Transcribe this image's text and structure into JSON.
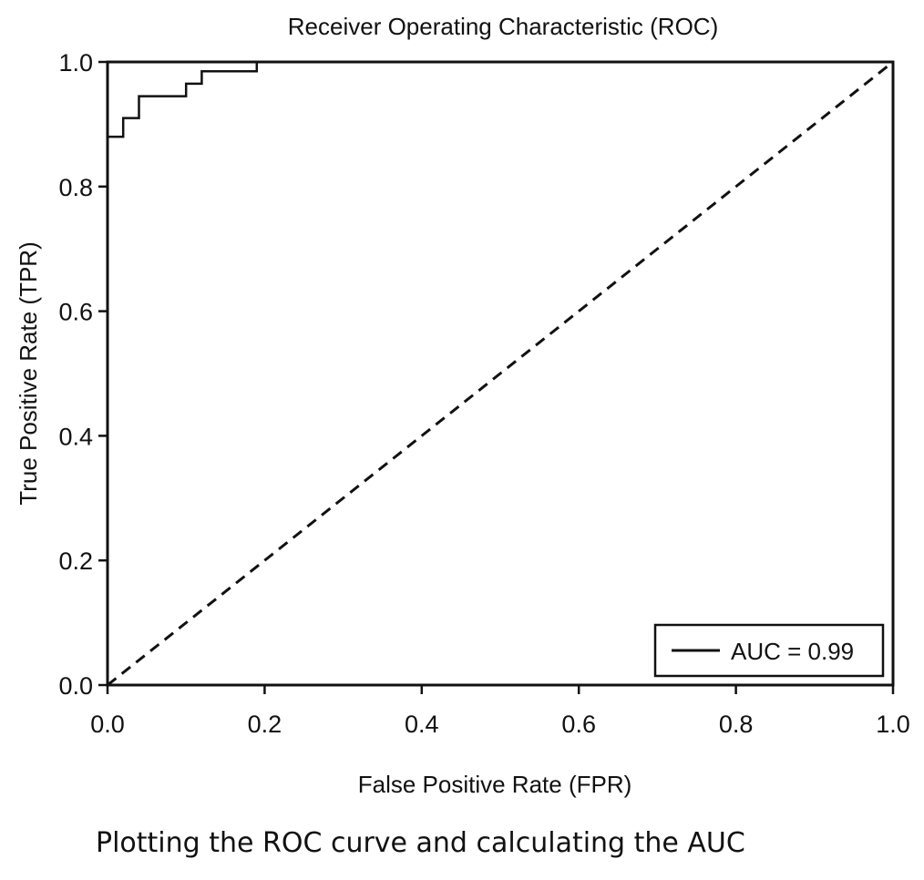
{
  "caption": "Plotting the ROC curve and calculating the AUC",
  "chart_data": {
    "type": "line",
    "title": "Receiver Operating Characteristic (ROC)",
    "xlabel": "False Positive Rate (FPR)",
    "ylabel": "True Positive Rate (TPR)",
    "xlim": [
      0.0,
      1.0
    ],
    "ylim": [
      0.0,
      1.0
    ],
    "xticks": [
      0.0,
      0.2,
      0.4,
      0.6,
      0.8,
      1.0
    ],
    "xtick_labels": [
      "0.0",
      "0.2",
      "0.4",
      "0.6",
      "0.8",
      "1.0"
    ],
    "yticks": [
      0.0,
      0.2,
      0.4,
      0.6,
      0.8,
      1.0
    ],
    "ytick_labels": [
      "0.0",
      "0.2",
      "0.4",
      "0.6",
      "0.8",
      "1.0"
    ],
    "grid": false,
    "legend_position": "bottom-right",
    "series": [
      {
        "name": "AUC = 0.99",
        "style": "solid",
        "color": "#111111",
        "x": [
          0.0,
          0.0,
          0.02,
          0.02,
          0.04,
          0.04,
          0.1,
          0.1,
          0.12,
          0.12,
          0.19,
          0.19,
          1.0
        ],
        "y": [
          0.0,
          0.88,
          0.88,
          0.91,
          0.91,
          0.945,
          0.945,
          0.965,
          0.965,
          0.985,
          0.985,
          1.0,
          1.0
        ]
      },
      {
        "style": "dashed",
        "color": "#111111",
        "x": [
          0.0,
          1.0
        ],
        "y": [
          0.0,
          1.0
        ]
      }
    ]
  }
}
